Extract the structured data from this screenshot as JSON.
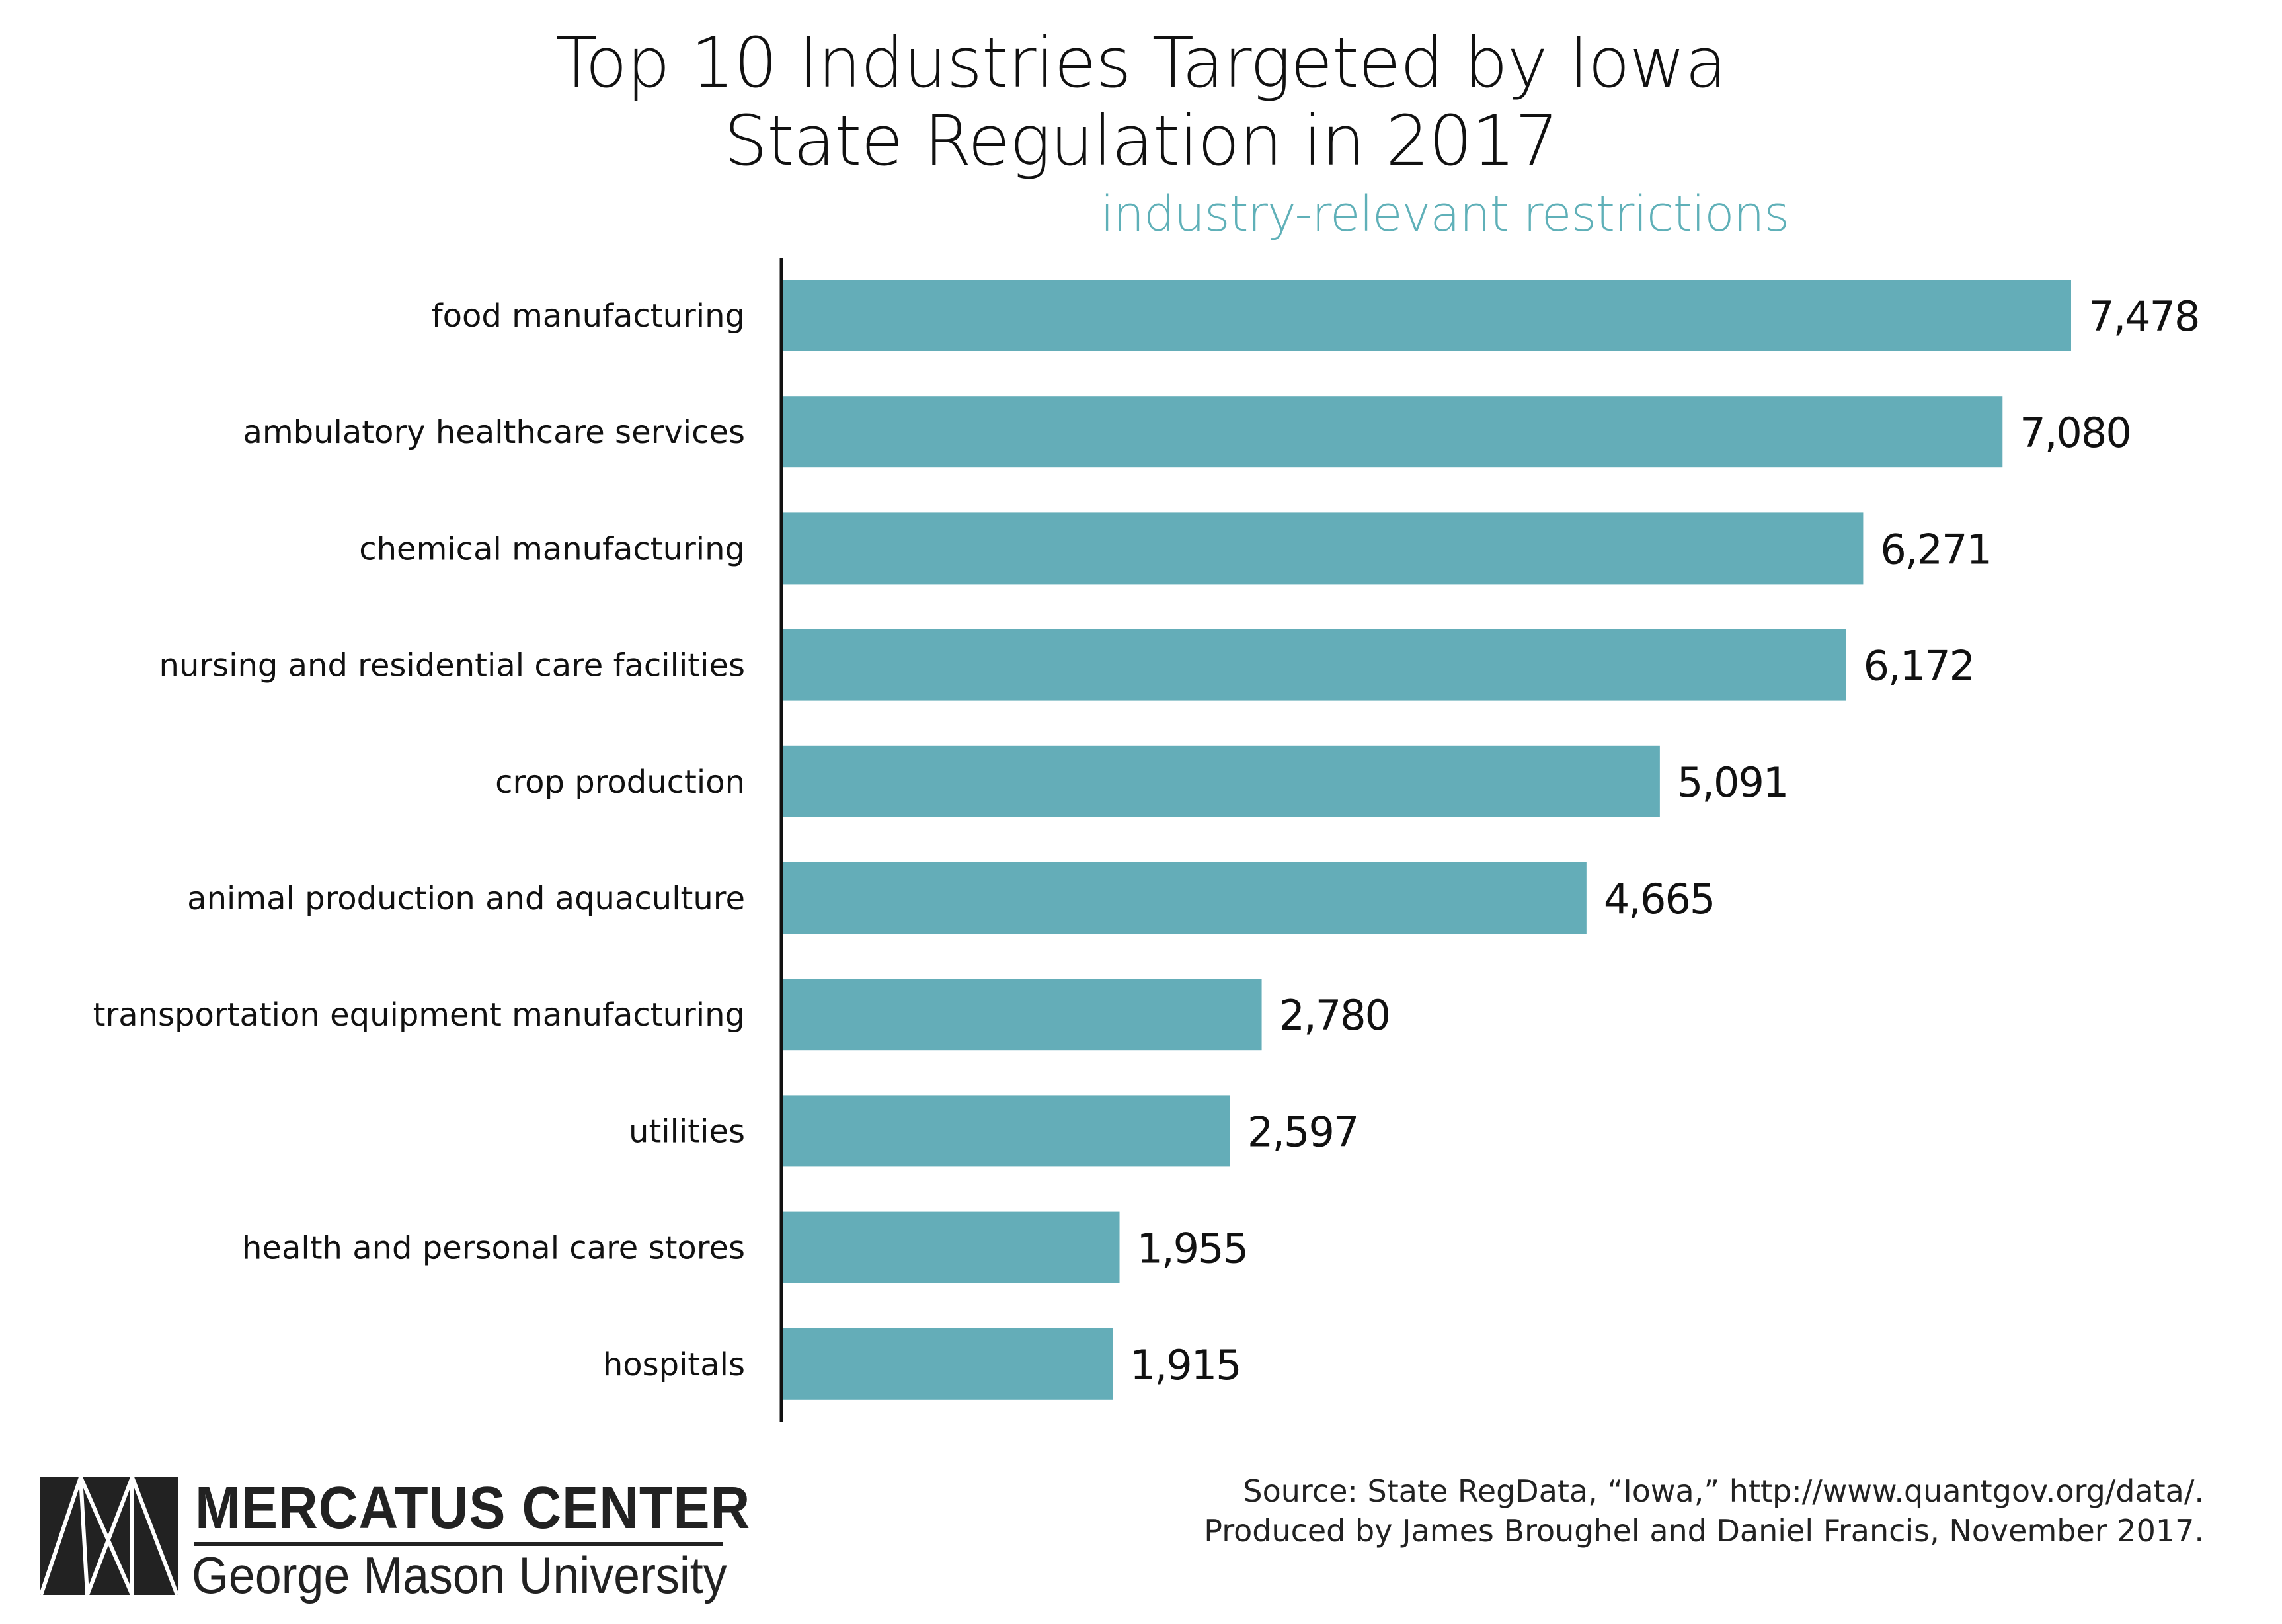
{
  "chart_data": {
    "type": "bar",
    "orientation": "horizontal",
    "title": [
      "Top 10 Industries Targeted by Iowa",
      "State Regulation in 2017"
    ],
    "subtitle": "industry-relevant restrictions",
    "categories": [
      "food manufacturing",
      "ambulatory healthcare services",
      "chemical manufacturing",
      "nursing and residential care facilities",
      "crop production",
      "animal production and aquaculture",
      "transportation equipment manufacturing",
      "utilities",
      "health and personal care stores",
      "hospitals"
    ],
    "values": [
      7478,
      7080,
      6271,
      6172,
      5091,
      4665,
      2780,
      2597,
      1955,
      1915
    ],
    "value_labels": [
      "7,478",
      "7,080",
      "6,271",
      "6,172",
      "5,091",
      "4,665",
      "2,780",
      "2,597",
      "1,955",
      "1,915"
    ],
    "xlim": [
      0,
      7478
    ],
    "grid": false,
    "bar_color": "#64adb8",
    "subtitle_color": "#5fb0b8"
  },
  "source": {
    "line1": "Source: State RegData, “Iowa,” http://www.quantgov.org/data/.",
    "line2": "Produced by James Broughel and Daniel Francis, November 2017."
  },
  "logo": {
    "name": "MERCATUS CENTER",
    "university": "George Mason University"
  }
}
